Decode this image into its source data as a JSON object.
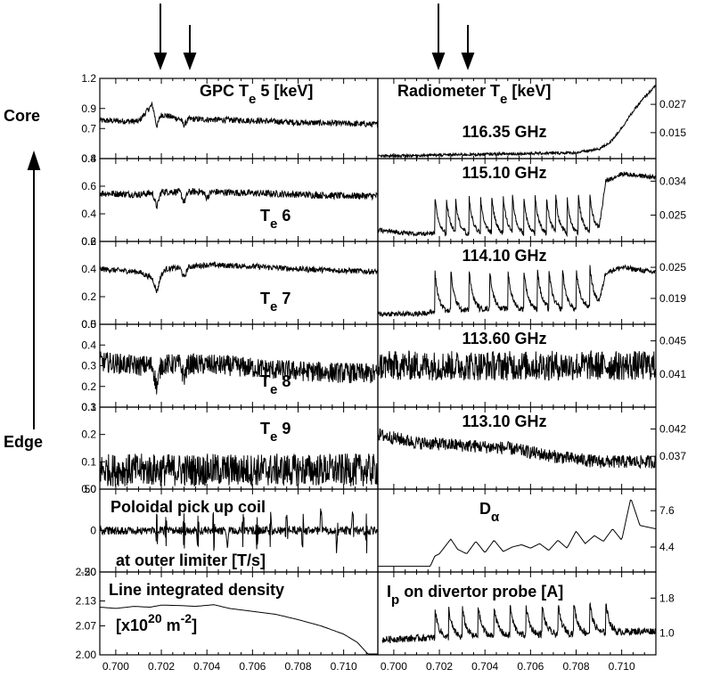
{
  "side_labels": {
    "core": "Core",
    "edge": "Edge"
  },
  "left_x_ticks": [
    "0.700",
    "0.702",
    "0.704",
    "0.706",
    "0.708",
    "0.710"
  ],
  "right_x_ticks": [
    "0.700",
    "0.702",
    "0.704",
    "0.706",
    "0.708",
    "0.710"
  ],
  "chart_data": [
    {
      "type": "line",
      "column": "left",
      "row": 0,
      "title": "GPC T",
      "title_sub": "e",
      "title_suffix": " 5 [keV]",
      "xlim": [
        0.6993,
        0.7115
      ],
      "ylim": [
        0.4,
        1.2
      ],
      "yticks": [
        "1.2",
        "0.9",
        "0.7",
        "0.4"
      ],
      "tick_values": [
        1.2,
        0.9,
        0.7,
        0.4
      ],
      "x": [
        0.6993,
        0.701,
        0.7016,
        0.7018,
        0.7022,
        0.7027,
        0.704,
        0.706,
        0.708,
        0.71,
        0.7115
      ],
      "y": [
        0.78,
        0.77,
        0.94,
        0.85,
        0.83,
        0.8,
        0.79,
        0.78,
        0.76,
        0.75,
        0.74
      ],
      "noise": 0.03,
      "dips": [
        [
          0.7018,
          0.12
        ],
        [
          0.703,
          0.06
        ]
      ]
    },
    {
      "type": "line",
      "column": "left",
      "row": 1,
      "title": "T",
      "title_sub": "e",
      "title_suffix": " 6",
      "xlim": [
        0.6993,
        0.7115
      ],
      "ylim": [
        0.2,
        0.8
      ],
      "yticks": [
        "0.8",
        "0.6",
        "0.4",
        "0.2"
      ],
      "tick_values": [
        0.8,
        0.6,
        0.4,
        0.2
      ],
      "x": [
        0.6993,
        0.701,
        0.702,
        0.704,
        0.706,
        0.708,
        0.71,
        0.7115
      ],
      "y": [
        0.55,
        0.54,
        0.56,
        0.56,
        0.55,
        0.54,
        0.53,
        0.53
      ],
      "noise": 0.025,
      "dips": [
        [
          0.7018,
          0.1
        ],
        [
          0.703,
          0.07
        ],
        [
          0.704,
          0.04
        ]
      ]
    },
    {
      "type": "line",
      "column": "left",
      "row": 2,
      "title": "T",
      "title_sub": "e",
      "title_suffix": " 7",
      "xlim": [
        0.6993,
        0.7115
      ],
      "ylim": [
        0.0,
        0.6
      ],
      "yticks": [
        "0.6",
        "0.4",
        "0.2",
        "0.0"
      ],
      "tick_values": [
        0.6,
        0.4,
        0.2,
        0.0
      ],
      "x": [
        0.6993,
        0.701,
        0.7018,
        0.7022,
        0.704,
        0.706,
        0.708,
        0.71,
        0.7115
      ],
      "y": [
        0.4,
        0.38,
        0.32,
        0.4,
        0.43,
        0.42,
        0.4,
        0.39,
        0.38
      ],
      "noise": 0.02,
      "dips": [
        [
          0.7018,
          0.08
        ],
        [
          0.703,
          0.07
        ]
      ]
    },
    {
      "type": "line",
      "column": "left",
      "row": 3,
      "title": "T",
      "title_sub": "e",
      "title_suffix": " 8",
      "xlim": [
        0.6993,
        0.7115
      ],
      "ylim": [
        0.1,
        0.5
      ],
      "yticks": [
        "0.5",
        "0.4",
        "0.3",
        "0.2",
        "0.1"
      ],
      "tick_values": [
        0.5,
        0.4,
        0.3,
        0.2,
        0.1
      ],
      "x": [
        0.6993,
        0.701,
        0.703,
        0.705,
        0.707,
        0.709,
        0.7115
      ],
      "y": [
        0.32,
        0.3,
        0.31,
        0.3,
        0.28,
        0.27,
        0.26
      ],
      "noise": 0.05,
      "dips": [
        [
          0.7018,
          0.1
        ],
        [
          0.703,
          0.06
        ]
      ]
    },
    {
      "type": "line",
      "column": "left",
      "row": 4,
      "title": "T",
      "title_sub": "e",
      "title_suffix": " 9",
      "xlim": [
        0.6993,
        0.7115
      ],
      "ylim": [
        0.0,
        0.3
      ],
      "yticks": [
        "0.3",
        "0.2",
        "0.1",
        "0.0"
      ],
      "tick_values": [
        0.3,
        0.2,
        0.1,
        0.0
      ],
      "x": [
        0.6993,
        0.705,
        0.7115
      ],
      "y": [
        0.07,
        0.07,
        0.07
      ],
      "noise": 0.06,
      "dips": []
    },
    {
      "type": "line",
      "column": "left",
      "row": 5,
      "title": "Poloidal pick up coil",
      "title2": "at outer limiter [T/s]",
      "xlim": [
        0.6993,
        0.7115
      ],
      "ylim": [
        -50,
        50
      ],
      "yticks": [
        "50",
        "0",
        "-50"
      ],
      "tick_values": [
        50,
        0,
        -50
      ],
      "x": [
        0.6993,
        0.7115
      ],
      "y": [
        0,
        0
      ],
      "noise": 5,
      "spikes": [
        0.7018,
        0.7022,
        0.703,
        0.7036,
        0.7043,
        0.7049,
        0.7056,
        0.7062,
        0.7068,
        0.7075,
        0.7082,
        0.709,
        0.7097,
        0.7104,
        0.711
      ],
      "spike_amp": 28
    },
    {
      "type": "line",
      "column": "left",
      "row": 6,
      "title": "Line integrated density",
      "title2": "[x10",
      "title2_sup": "20",
      "title2_mid": " m",
      "title2_sup2": "-2",
      "title2_end": "]",
      "xlim": [
        0.6993,
        0.7115
      ],
      "ylim": [
        2.0,
        2.2
      ],
      "yticks": [
        "2.20",
        "2.13",
        "2.07",
        "2.00"
      ],
      "tick_values": [
        2.2,
        2.13,
        2.07,
        2.0
      ],
      "x": [
        0.6993,
        0.7,
        0.7008,
        0.7015,
        0.702,
        0.7028,
        0.7035,
        0.7043,
        0.705,
        0.706,
        0.707,
        0.708,
        0.709,
        0.71,
        0.7106,
        0.7109,
        0.7111
      ],
      "y": [
        2.115,
        2.112,
        2.117,
        2.115,
        2.12,
        2.119,
        2.117,
        2.121,
        2.112,
        2.105,
        2.098,
        2.085,
        2.07,
        2.05,
        2.03,
        2.012,
        2.0
      ],
      "noise": 0
    },
    {
      "type": "line",
      "column": "right",
      "row": 0,
      "title": "Radiometer T",
      "title_sub": "e",
      "title_suffix": "  [keV]",
      "subtitle": "116.35 GHz",
      "xlim": [
        0.6993,
        0.7115
      ],
      "ylim": [
        0.004,
        0.038
      ],
      "yticks": [
        "0.027",
        "0.015"
      ],
      "tick_values": [
        0.027,
        0.015
      ],
      "x": [
        0.6993,
        0.702,
        0.705,
        0.708,
        0.709,
        0.7095,
        0.71,
        0.7105,
        0.711,
        0.7115
      ],
      "y": [
        0.005,
        0.0055,
        0.006,
        0.0065,
        0.008,
        0.011,
        0.017,
        0.024,
        0.03,
        0.035
      ],
      "noise": 0.0006,
      "dips": []
    },
    {
      "type": "line",
      "column": "right",
      "row": 1,
      "subtitle": "115.10 GHz",
      "xlim": [
        0.6993,
        0.7115
      ],
      "ylim": [
        0.018,
        0.04
      ],
      "yticks": [
        "0.034",
        "0.025"
      ],
      "tick_values": [
        0.034,
        0.025
      ],
      "x": [
        0.6993,
        0.701,
        0.7018,
        0.704,
        0.706,
        0.708,
        0.709,
        0.7093,
        0.71,
        0.7115
      ],
      "y": [
        0.021,
        0.02,
        0.02,
        0.02,
        0.02,
        0.02,
        0.021,
        0.034,
        0.036,
        0.035
      ],
      "noise": 0.0006,
      "teeth": [
        0.7018,
        0.7023,
        0.7027,
        0.7033,
        0.7038,
        0.7043,
        0.7048,
        0.7052,
        0.7057,
        0.7062,
        0.7067,
        0.7071,
        0.7076,
        0.7081,
        0.7086
      ],
      "teeth_amp": 0.01
    },
    {
      "type": "line",
      "column": "right",
      "row": 2,
      "subtitle": "114.10 GHz",
      "xlim": [
        0.6993,
        0.7115
      ],
      "ylim": [
        0.014,
        0.03
      ],
      "yticks": [
        "0.025",
        "0.019"
      ],
      "tick_values": [
        0.025,
        0.019
      ],
      "x": [
        0.6993,
        0.701,
        0.702,
        0.704,
        0.706,
        0.708,
        0.709,
        0.7093,
        0.71,
        0.7115
      ],
      "y": [
        0.016,
        0.016,
        0.0165,
        0.017,
        0.017,
        0.017,
        0.018,
        0.024,
        0.025,
        0.024
      ],
      "noise": 0.0005,
      "teeth": [
        0.7018,
        0.7025,
        0.7033,
        0.7042,
        0.705,
        0.7057,
        0.7063,
        0.7068,
        0.7074,
        0.708,
        0.7086
      ],
      "teeth_amp": 0.008
    },
    {
      "type": "line",
      "column": "right",
      "row": 3,
      "subtitle": "113.60 GHz",
      "xlim": [
        0.6993,
        0.7115
      ],
      "ylim": [
        0.037,
        0.047
      ],
      "yticks": [
        "0.045",
        "0.041"
      ],
      "tick_values": [
        0.045,
        0.041
      ],
      "x": [
        0.6993,
        0.7115
      ],
      "y": [
        0.042,
        0.042
      ],
      "noise": 0.0018,
      "dips": []
    },
    {
      "type": "line",
      "column": "right",
      "row": 4,
      "subtitle": "113.10 GHz",
      "xlim": [
        0.6993,
        0.7115
      ],
      "ylim": [
        0.031,
        0.046
      ],
      "yticks": [
        "0.042",
        "0.037"
      ],
      "tick_values": [
        0.042,
        0.037
      ],
      "x": [
        0.6993,
        0.701,
        0.703,
        0.705,
        0.707,
        0.709,
        0.7115
      ],
      "y": [
        0.041,
        0.0395,
        0.039,
        0.0385,
        0.037,
        0.036,
        0.036
      ],
      "noise": 0.0012,
      "dips": []
    },
    {
      "type": "line",
      "column": "right",
      "row": 5,
      "title": "D",
      "title_sub": "α",
      "xlim": [
        0.6993,
        0.7115
      ],
      "ylim": [
        2.2,
        9.5
      ],
      "yticks": [
        "7.6",
        "4.4"
      ],
      "tick_values": [
        7.6,
        4.4
      ],
      "x": [
        0.6993,
        0.701,
        0.7016,
        0.7018,
        0.702,
        0.7025,
        0.7028,
        0.7032,
        0.7036,
        0.704,
        0.7044,
        0.7048,
        0.7052,
        0.7056,
        0.706,
        0.7064,
        0.7068,
        0.7072,
        0.7076,
        0.708,
        0.7084,
        0.7088,
        0.7092,
        0.7096,
        0.71,
        0.7104,
        0.7108,
        0.7115
      ],
      "y": [
        2.7,
        2.7,
        2.7,
        3.6,
        3.8,
        5.1,
        4.2,
        3.8,
        4.9,
        3.9,
        5.0,
        4.0,
        4.4,
        4.6,
        4.3,
        4.7,
        4.1,
        5.0,
        4.3,
        5.8,
        4.7,
        5.4,
        4.9,
        6.0,
        5.0,
        8.7,
        6.3,
        6.0
      ],
      "noise": 0
    },
    {
      "type": "line",
      "column": "right",
      "row": 6,
      "title": "I",
      "title_sub": "p",
      "title_suffix": " on divertor probe [A]",
      "xlim": [
        0.6993,
        0.7115
      ],
      "ylim": [
        0.5,
        2.4
      ],
      "yticks": [
        "1.8",
        "1.0"
      ],
      "tick_values": [
        1.8,
        1.0
      ],
      "x": [
        0.6995,
        0.702,
        0.705,
        0.708,
        0.7115
      ],
      "y": [
        0.85,
        0.9,
        0.95,
        1.0,
        1.05
      ],
      "noise": 0.08,
      "xstart": 0.6995,
      "teeth": [
        0.7018,
        0.7024,
        0.703,
        0.7037,
        0.7044,
        0.7051,
        0.7058,
        0.7065,
        0.7072,
        0.7079,
        0.7086,
        0.7093
      ],
      "teeth_amp": 0.7
    }
  ]
}
